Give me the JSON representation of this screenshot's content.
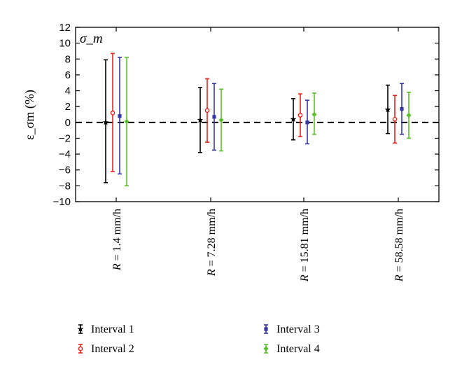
{
  "chart_data": {
    "type": "errorbar",
    "annotation": "σ_m",
    "ylabel": "ε_σm (%)",
    "ylim": [
      -10,
      12
    ],
    "yticks": [
      -10,
      -8,
      -6,
      -4,
      -2,
      0,
      2,
      4,
      6,
      8,
      10,
      12
    ],
    "reference_line": 0,
    "categories": [
      {
        "var": "R",
        "text": " = 1.4 mm/h"
      },
      {
        "var": "R",
        "text": " = 7.28 mm/h"
      },
      {
        "var": "R",
        "text": " = 15.81 mm/h"
      },
      {
        "var": "R",
        "text": " = 58.58 mm/h"
      }
    ],
    "series": [
      {
        "name": "Interval 1",
        "color": "#000000",
        "marker": "star",
        "mean": [
          0.0,
          0.3,
          0.4,
          1.6
        ],
        "low": [
          -7.6,
          -3.8,
          -2.2,
          -1.4
        ],
        "high": [
          7.9,
          4.4,
          3.0,
          4.7
        ]
      },
      {
        "name": "Interval 2",
        "color": "#e8231c",
        "marker": "circle",
        "mean": [
          1.2,
          1.5,
          0.9,
          0.4
        ],
        "low": [
          -6.2,
          -2.5,
          -1.8,
          -2.6
        ],
        "high": [
          8.7,
          5.5,
          3.6,
          3.4
        ]
      },
      {
        "name": "Interval 3",
        "color": "#3436a8",
        "marker": "square",
        "mean": [
          0.8,
          0.7,
          0.0,
          1.7
        ],
        "low": [
          -6.5,
          -3.5,
          -2.7,
          -1.5
        ],
        "high": [
          8.2,
          4.9,
          2.8,
          4.9
        ]
      },
      {
        "name": "Interval 4",
        "color": "#5bbf2c",
        "marker": "diamond",
        "mean": [
          0.1,
          0.3,
          1.0,
          0.9
        ],
        "low": [
          -8.0,
          -3.6,
          -1.5,
          -2.0
        ],
        "high": [
          8.2,
          4.2,
          3.7,
          3.8
        ]
      }
    ],
    "legend_position": "bottom",
    "grid": false
  }
}
